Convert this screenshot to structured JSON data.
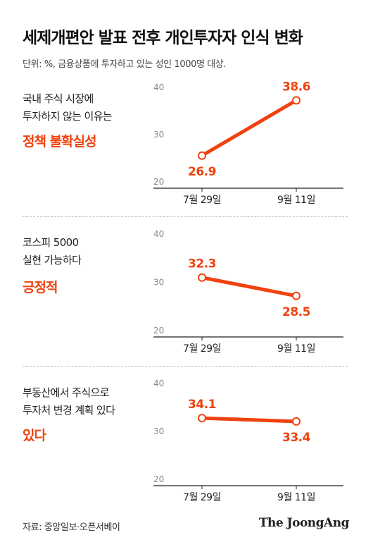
{
  "header": {
    "title": "세제개편안 발표 전후 개인투자자 인식 변화",
    "subtitle": "단위: %, 금융상품에 투자하고 있는 성인 1000명 대상."
  },
  "panels": [
    {
      "label_lines": [
        "국내 주식 시장에",
        "투자하지 않는 이유는"
      ],
      "highlight": "정책 불확실성"
    },
    {
      "label_lines": [
        "코스피 5000",
        "실현 가능하다"
      ],
      "highlight": "긍정적"
    },
    {
      "label_lines": [
        "부동산에서 주식으로",
        "투자처 변경 계획 있다"
      ],
      "highlight": "있다"
    }
  ],
  "chart_data": [
    {
      "type": "line",
      "categories": [
        "7월 29일",
        "9월 11일"
      ],
      "series": [
        {
          "values": [
            26.9,
            38.6
          ],
          "labels": [
            "26.9",
            "38.6"
          ]
        }
      ],
      "ylim": [
        20,
        40
      ],
      "yticks": [
        "20",
        "30",
        "40"
      ],
      "color": "#f0420e"
    },
    {
      "type": "line",
      "categories": [
        "7월 29일",
        "9월 11일"
      ],
      "series": [
        {
          "values": [
            32.3,
            28.5
          ],
          "labels": [
            "32.3",
            "28.5"
          ]
        }
      ],
      "ylim": [
        20,
        40
      ],
      "yticks": [
        "20",
        "30",
        "40"
      ],
      "color": "#f0420e"
    },
    {
      "type": "line",
      "categories": [
        "7월 29일",
        "9월 11일"
      ],
      "series": [
        {
          "values": [
            34.1,
            33.4
          ],
          "labels": [
            "34.1",
            "33.4"
          ]
        }
      ],
      "ylim": [
        20,
        40
      ],
      "yticks": [
        "20",
        "30",
        "40"
      ],
      "color": "#f0420e"
    }
  ],
  "footer": {
    "source": "자료: 중앙일보·오픈서베이",
    "brand": "The JoongAng"
  }
}
